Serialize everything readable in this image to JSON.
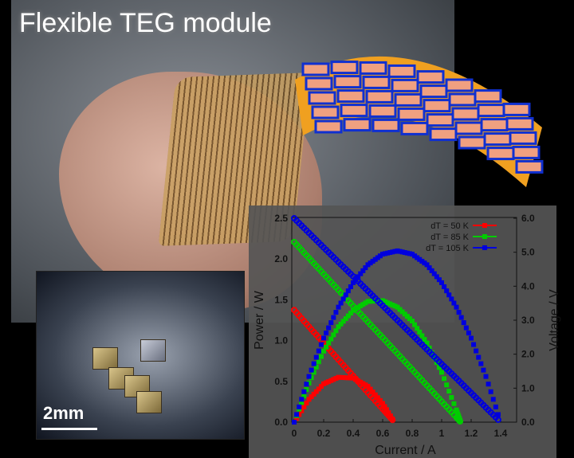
{
  "title": "Flexible TEG module",
  "scale_bar": "2mm",
  "colors": {
    "dT50": "#ff0000",
    "dT85": "#00cc00",
    "dT105": "#0000dd"
  },
  "chart_data": {
    "type": "scatter",
    "xlabel": "Current / A",
    "ylabel": "Power / W",
    "y2label": "Voltage / V",
    "xlim": [
      0,
      1.4
    ],
    "ylim": [
      0,
      2.5
    ],
    "y2lim": [
      0,
      6.0
    ],
    "xticks": [
      "0",
      "0.2",
      "0.4",
      "0.6",
      "0.8",
      "1",
      "1.2",
      "1.4"
    ],
    "yticks": [
      "0.0",
      "0.5",
      "1.0",
      "1.5",
      "2.0",
      "2.5"
    ],
    "y2ticks": [
      "0.0",
      "1.0",
      "2.0",
      "3.0",
      "4.0",
      "5.0",
      "6.0"
    ],
    "legend_position": "top-right",
    "series": [
      {
        "name": "dT = 50 K",
        "color": "#ff0000",
        "current": [
          0,
          0.1,
          0.2,
          0.3,
          0.4,
          0.5,
          0.6,
          0.68
        ],
        "voltage": [
          3.3,
          2.81,
          2.33,
          1.84,
          1.36,
          0.87,
          0.39,
          0
        ],
        "power": [
          0,
          0.28,
          0.47,
          0.55,
          0.54,
          0.44,
          0.23,
          0
        ]
      },
      {
        "name": "dT = 85 K",
        "color": "#00cc00",
        "current": [
          0,
          0.1,
          0.2,
          0.3,
          0.4,
          0.5,
          0.6,
          0.7,
          0.8,
          0.9,
          1.0,
          1.1,
          1.13
        ],
        "voltage": [
          5.3,
          4.83,
          4.36,
          3.89,
          3.42,
          2.95,
          2.49,
          2.02,
          1.55,
          1.08,
          0.61,
          0.14,
          0
        ],
        "power": [
          0,
          0.48,
          0.87,
          1.17,
          1.37,
          1.48,
          1.49,
          1.41,
          1.24,
          0.97,
          0.61,
          0.15,
          0
        ]
      },
      {
        "name": "dT = 105 K",
        "color": "#0000dd",
        "current": [
          0,
          0.1,
          0.2,
          0.3,
          0.4,
          0.5,
          0.6,
          0.7,
          0.8,
          0.9,
          1.0,
          1.1,
          1.2,
          1.3,
          1.4
        ],
        "voltage": [
          6.0,
          5.57,
          5.14,
          4.71,
          4.29,
          3.86,
          3.43,
          3.0,
          2.57,
          2.14,
          1.71,
          1.29,
          0.86,
          0.43,
          0
        ],
        "power": [
          0,
          0.56,
          1.03,
          1.41,
          1.71,
          1.93,
          2.06,
          2.1,
          2.06,
          1.93,
          1.71,
          1.41,
          1.03,
          0.56,
          0
        ]
      }
    ]
  }
}
